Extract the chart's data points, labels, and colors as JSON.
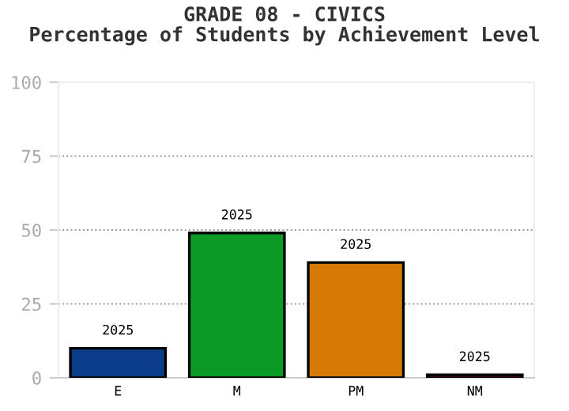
{
  "chart_data": {
    "type": "bar",
    "title": "GRADE 08 - CIVICS\nPercentage of Students by Achievement Level",
    "categories": [
      "E",
      "M",
      "PM",
      "NM"
    ],
    "values": [
      10,
      49,
      39,
      1
    ],
    "colors": [
      "#0b3d8c",
      "#0a9a25",
      "#d67a06",
      "#b0102a"
    ],
    "annotations": [
      {
        "text": "2025",
        "x": "E",
        "y": 10
      },
      {
        "text": "2025",
        "x": "M",
        "y": 49
      },
      {
        "text": "2025",
        "x": "PM",
        "y": 39
      },
      {
        "text": "2025",
        "x": "NM",
        "y": 1
      }
    ],
    "ylim": [
      0,
      100
    ],
    "yticks": [
      0,
      25,
      50,
      75,
      100
    ],
    "grid": "y",
    "line_style": "dotted"
  }
}
